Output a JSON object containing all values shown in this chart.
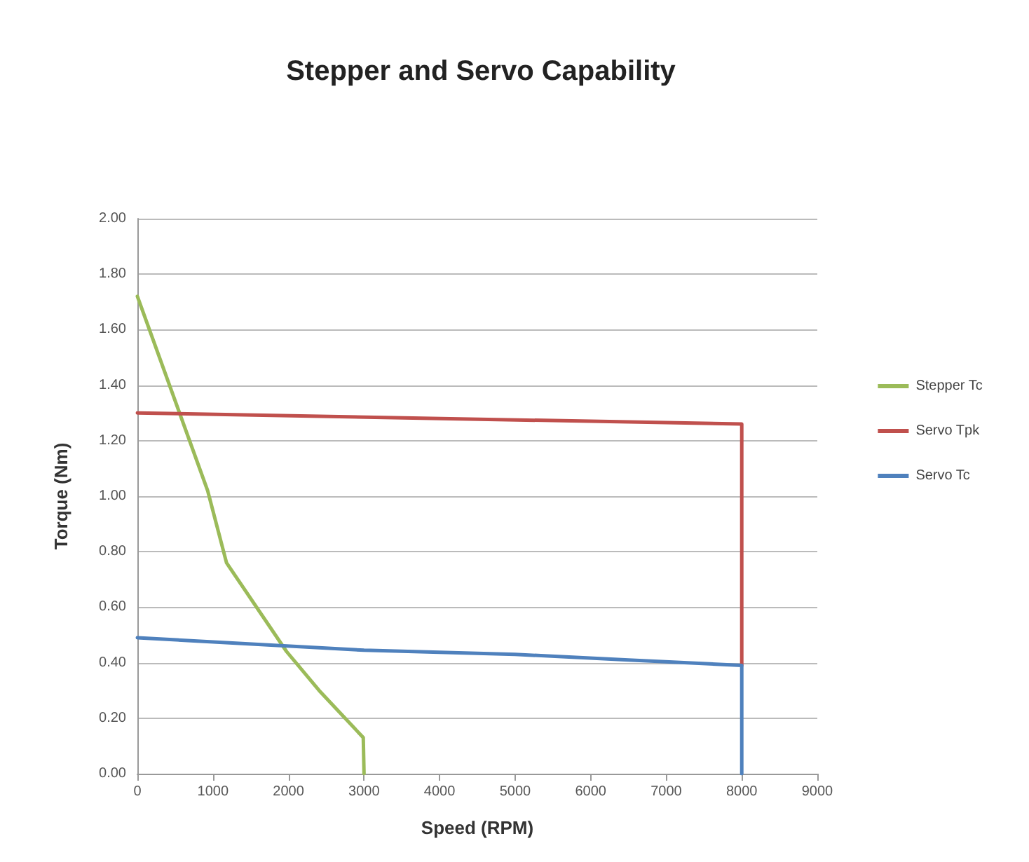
{
  "chart_data": {
    "type": "line",
    "title": "Stepper and Servo Capability",
    "xlabel": "Speed (RPM)",
    "ylabel": "Torque (Nm)",
    "series": [
      {
        "name": "Stepper Tc",
        "color": "#9bbb59",
        "x": [
          0,
          930,
          1180,
          1975,
          2405,
          2990,
          3000
        ],
        "values": [
          1.72,
          1.02,
          0.76,
          0.44,
          0.3,
          0.13,
          0
        ]
      },
      {
        "name": "Servo Tpk",
        "color": "#c0504d",
        "x": [
          0,
          8000,
          8000
        ],
        "values": [
          1.3,
          1.26,
          0.39
        ]
      },
      {
        "name": "Servo Tc",
        "color": "#4f81bd",
        "x": [
          0,
          3000,
          5000,
          6500,
          8000,
          8000
        ],
        "values": [
          0.49,
          0.445,
          0.43,
          0.41,
          0.39,
          0
        ]
      }
    ],
    "xlim": [
      0,
      9000
    ],
    "xticks": [
      0,
      1000,
      2000,
      3000,
      4000,
      5000,
      6000,
      7000,
      8000,
      9000
    ],
    "ylim": [
      0,
      2
    ],
    "yticks": [
      {
        "value": 0,
        "label": "0.00"
      },
      {
        "value": 0.2,
        "label": "0.20"
      },
      {
        "value": 0.4,
        "label": "0.40"
      },
      {
        "value": 0.6,
        "label": "0.60"
      },
      {
        "value": 0.8,
        "label": "0.80"
      },
      {
        "value": 1,
        "label": "1.00"
      },
      {
        "value": 1.2,
        "label": "1.20"
      },
      {
        "value": 1.4,
        "label": "1.40"
      },
      {
        "value": 1.6,
        "label": "1.60"
      },
      {
        "value": 1.8,
        "label": "1.80"
      },
      {
        "value": 2,
        "label": "2.00"
      }
    ],
    "grid": "y",
    "legend": "right",
    "marker": "none",
    "line_style": "solid"
  }
}
